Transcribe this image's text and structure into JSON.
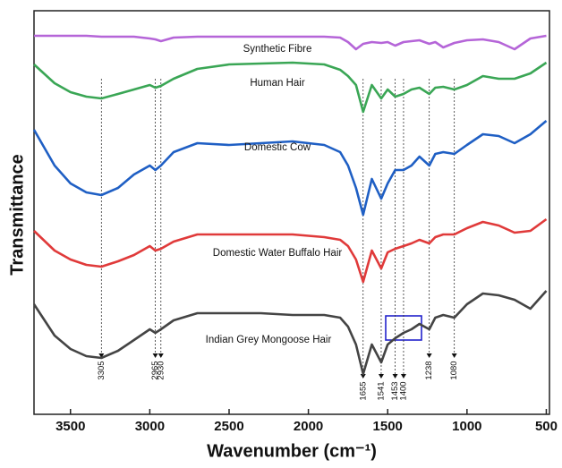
{
  "chart_data": {
    "type": "line",
    "xlabel": "Wavenumber (cm⁻¹)",
    "ylabel": "Transmittance",
    "x": [
      3730,
      3600,
      3500,
      3400,
      3305,
      3200,
      3100,
      3000,
      2965,
      2930,
      2850,
      2700,
      2500,
      2300,
      2100,
      1900,
      1800,
      1750,
      1700,
      1655,
      1600,
      1541,
      1500,
      1453,
      1400,
      1350,
      1300,
      1238,
      1200,
      1150,
      1080,
      1000,
      900,
      800,
      700,
      600,
      500
    ],
    "xlim": [
      3730,
      480
    ],
    "xticks": [
      3500,
      3000,
      2500,
      2000,
      1500,
      1000,
      500
    ],
    "ylim": [
      0,
      451
    ],
    "series": [
      {
        "name": "Synthetic Fibre",
        "color": "#b565d8",
        "values": [
          423,
          423,
          423,
          423,
          422,
          422,
          422,
          420,
          419,
          417,
          421,
          422,
          422,
          422,
          422,
          422,
          421,
          416,
          408,
          414,
          416,
          415,
          416,
          412,
          416,
          417,
          418,
          414,
          416,
          410,
          415,
          418,
          419,
          416,
          408,
          420,
          423
        ]
      },
      {
        "name": "Human Hair",
        "color": "#3aa655",
        "values": [
          391,
          370,
          360,
          355,
          353,
          358,
          363,
          368,
          365,
          367,
          375,
          386,
          391,
          392,
          393,
          391,
          385,
          378,
          368,
          338,
          368,
          353,
          363,
          355,
          358,
          363,
          365,
          358,
          365,
          366,
          363,
          368,
          378,
          375,
          375,
          381,
          393
        ]
      },
      {
        "name": "Domestic Cow",
        "color": "#1f5fc4",
        "values": [
          318,
          278,
          258,
          248,
          245,
          253,
          268,
          278,
          273,
          278,
          293,
          303,
          301,
          303,
          305,
          301,
          293,
          278,
          253,
          223,
          263,
          241,
          258,
          273,
          273,
          278,
          288,
          278,
          291,
          293,
          291,
          301,
          313,
          311,
          303,
          313,
          328
        ]
      },
      {
        "name": "Domestic Water Buffalo Hair",
        "color": "#e03a3a",
        "values": [
          205,
          183,
          173,
          167,
          165,
          171,
          178,
          188,
          183,
          185,
          193,
          201,
          201,
          201,
          201,
          198,
          195,
          188,
          173,
          148,
          183,
          163,
          181,
          185,
          188,
          191,
          195,
          191,
          198,
          201,
          201,
          208,
          215,
          211,
          203,
          205,
          218
        ]
      },
      {
        "name": "Indian Grey Mongoose Hair",
        "color": "#444444",
        "values": [
          123,
          88,
          73,
          65,
          63,
          71,
          83,
          95,
          91,
          95,
          105,
          113,
          113,
          113,
          111,
          111,
          108,
          98,
          78,
          45,
          78,
          58,
          78,
          85,
          91,
          95,
          101,
          95,
          108,
          111,
          108,
          123,
          135,
          133,
          128,
          118,
          138
        ]
      }
    ],
    "peaks": [
      3305,
      2965,
      2930,
      1655,
      1541,
      1453,
      1400,
      1238,
      1080
    ]
  }
}
